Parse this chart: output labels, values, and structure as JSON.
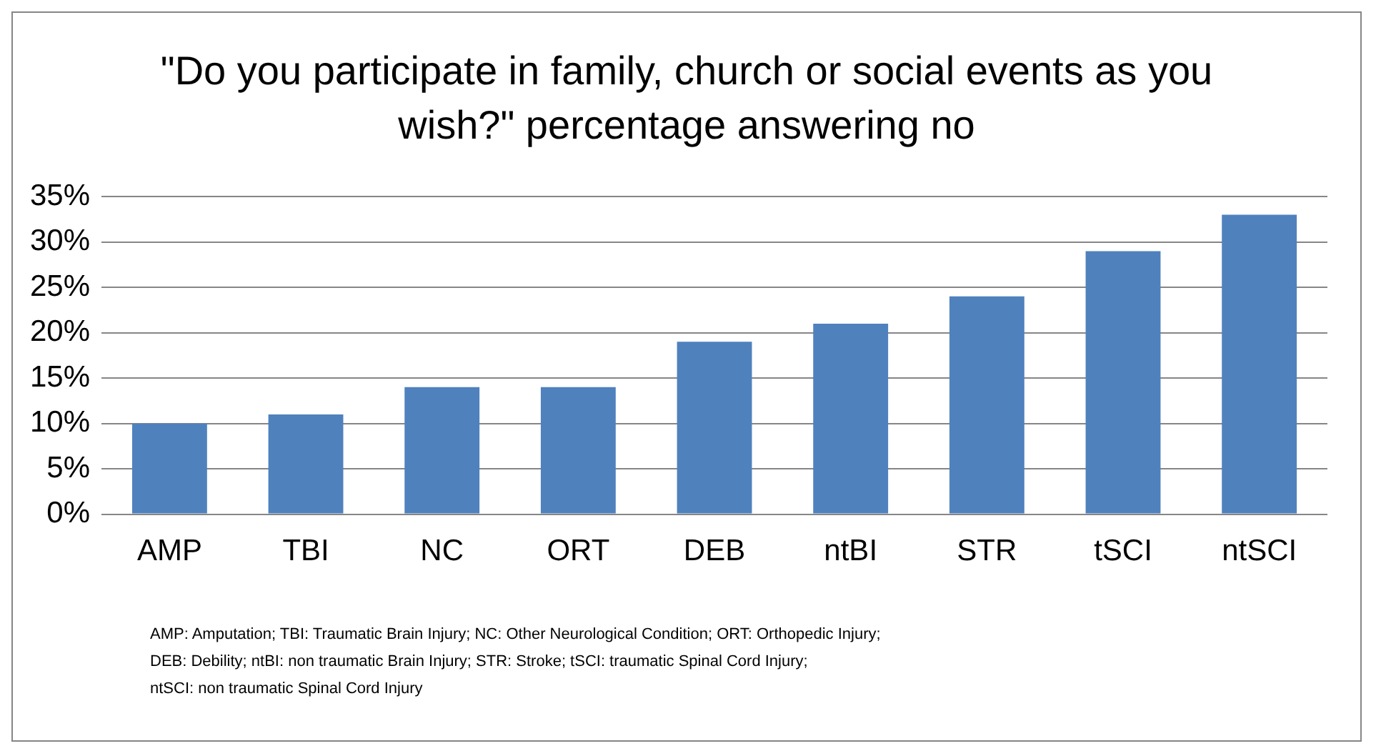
{
  "chart_data": {
    "type": "bar",
    "title": "\"Do you participate in family, church or social events as you wish?\" percentage answering no",
    "categories": [
      "AMP",
      "TBI",
      "NC",
      "ORT",
      "DEB",
      "ntBI",
      "STR",
      "tSCI",
      "ntSCI"
    ],
    "values": [
      10,
      11,
      14,
      14,
      19,
      21,
      24,
      29,
      33
    ],
    "color": "#4f81bd",
    "ylim": [
      0,
      35
    ],
    "yticks": [
      {
        "value": 0,
        "label": "0%"
      },
      {
        "value": 5,
        "label": "5%"
      },
      {
        "value": 10,
        "label": "10%"
      },
      {
        "value": 15,
        "label": "15%"
      },
      {
        "value": 20,
        "label": "20%"
      },
      {
        "value": 25,
        "label": "25%"
      },
      {
        "value": 30,
        "label": "30%"
      },
      {
        "value": 35,
        "label": "35%"
      }
    ],
    "grid": "y",
    "legend": false,
    "annotations": [
      "AMP: Amputation; TBI: Traumatic Brain Injury; NC: Other Neurological Condition; ORT: Orthopedic Injury;",
      "DEB: Debility; ntBI: non traumatic Brain Injury; STR: Stroke; tSCI: traumatic Spinal Cord Injury;",
      "ntSCI: non traumatic Spinal Cord Injury"
    ]
  }
}
